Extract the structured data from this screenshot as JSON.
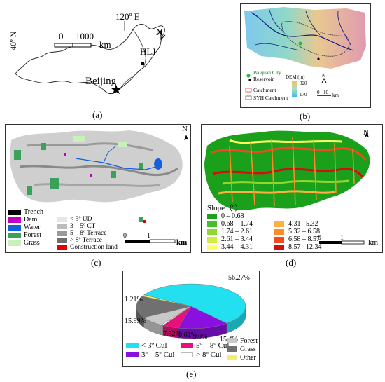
{
  "panel_a": {
    "label": "(a)",
    "lon_label": "120º E",
    "lat_label": "40º N",
    "scale_zero": "0",
    "scale_value": "1000",
    "scale_unit": "km",
    "north": "N",
    "hlj": "HLJ",
    "beijing": "Beijing"
  },
  "panel_b": {
    "label": "(b)",
    "legend": {
      "city": "Baiquan City",
      "reservoir": "Reservoir",
      "catchment": "Catchment",
      "syh": "SYH Catchment",
      "dem_title": "DEM (m)",
      "dem_high": "320",
      "dem_low": "170",
      "north": "N",
      "scale_zero": "0",
      "scale_value": "10",
      "scale_unit": "km"
    }
  },
  "panel_c": {
    "label": "(c)",
    "north": "N",
    "legend_left": [
      "Trench",
      "Dam",
      "Water",
      "Forest",
      "Grass"
    ],
    "legend_right": [
      "< 3º UD",
      "3 – 5º CT",
      "5 – 8º Terrace",
      "> 8º Terrace",
      "Construction land"
    ],
    "colors_left": [
      "#000000",
      "#c000c0",
      "#1060e0",
      "#3aa05a",
      "#c8f0b8"
    ],
    "colors_right": [
      "#e6e6e6",
      "#bdbdbd",
      "#9a9a9a",
      "#6f6f6f",
      "#e00000"
    ],
    "scale_zero": "0",
    "scale_value": "1",
    "scale_unit": "km"
  },
  "panel_d": {
    "label": "(d)",
    "north": "N",
    "slope_title": "Slope（º）",
    "classes_left": [
      "0 – 0.68",
      "0.68 – 1.74",
      "1.74 – 2.61",
      "2.61 – 3.44",
      "3.44 – 4.31"
    ],
    "classes_right": [
      "4.31– 5.32",
      "5.32 – 6.58",
      "6.58 – 8.57",
      "8.57 –12.34"
    ],
    "colors_left": [
      "#1aa01a",
      "#44c02a",
      "#8fd830",
      "#cfee40",
      "#ffff60"
    ],
    "colors_right": [
      "#ffb040",
      "#ff8a2a",
      "#f04a20",
      "#d01010"
    ],
    "scale_zero": "0",
    "scale_value": "1",
    "scale_unit": "km"
  },
  "panel_e": {
    "label": "(e)",
    "legend_left": [
      "< 3º Cul",
      "3º – 5º Cul"
    ],
    "legend_mid": [
      "5º – 8º Cul",
      "> 8º Cul"
    ],
    "legend_right": [
      "Forest",
      "Grass",
      "Other"
    ]
  },
  "chart_data": {
    "type": "pie",
    "slices": [
      {
        "label": "< 3º Cul",
        "value": 56.27,
        "color": "#22e0f0",
        "printed": "56.27%"
      },
      {
        "label": "3º – 5º Cul",
        "value": 15.4,
        "color": "#8a10e0",
        "printed": "15.4%"
      },
      {
        "label": "5º – 8º Cul",
        "value": 5.0,
        "color": "#e8107a",
        "printed": "5.0%"
      },
      {
        "label": "> 8º Cul",
        "value": 0.61,
        "color": "#ffffff",
        "printed": "0.61%"
      },
      {
        "label": "Forest",
        "value": 7.52,
        "color": "#c8c8c8",
        "printed": "7.52%"
      },
      {
        "label": "Grass",
        "value": 15.99,
        "color": "#707070",
        "printed": "15.99%"
      },
      {
        "label": "Other",
        "value": 1.21,
        "color": "#f0f070",
        "printed": "1.21%"
      }
    ]
  }
}
